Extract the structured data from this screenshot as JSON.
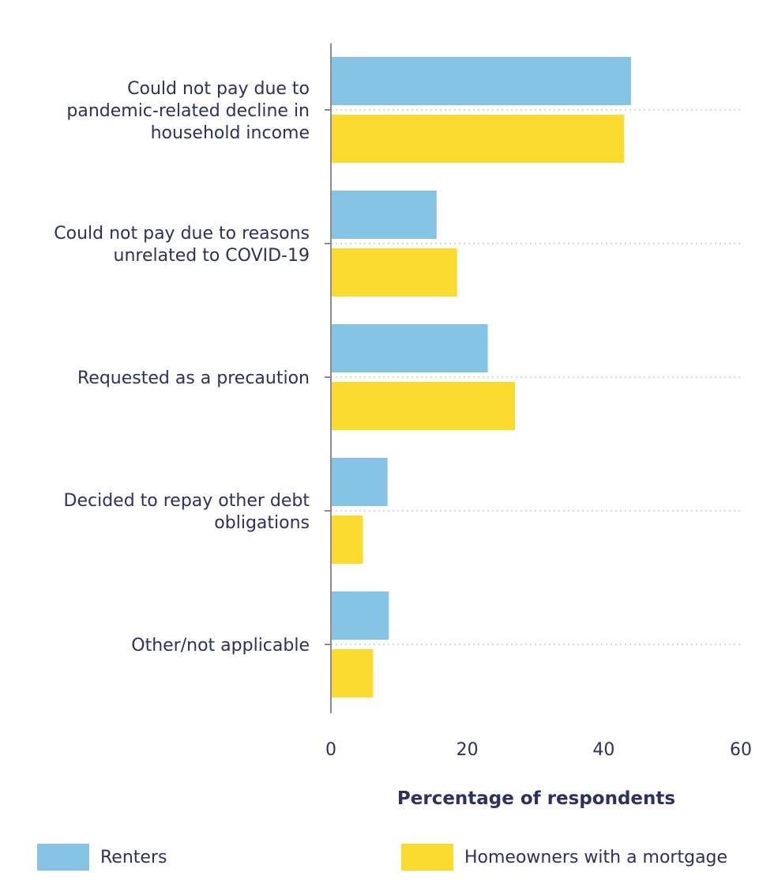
{
  "chart_data": {
    "type": "bar",
    "orientation": "horizontal",
    "categories": [
      [
        "Could not pay due to",
        "pandemic-related decline in",
        "household income"
      ],
      [
        "Could not pay due to reasons",
        "unrelated to COVID-19"
      ],
      [
        "Requested as a precaution"
      ],
      [
        "Decided to repay other debt",
        "obligations"
      ],
      [
        "Other/not applicable"
      ]
    ],
    "series": [
      {
        "name": "Renters",
        "color": "#85c4e4",
        "values": [
          44,
          15.5,
          23,
          8.3,
          8.5
        ]
      },
      {
        "name": "Homeowners with a mortgage",
        "color": "#fadb2e",
        "values": [
          43,
          18.5,
          27,
          4.7,
          6.2
        ]
      }
    ],
    "xlabel": "Percentage of respondents",
    "ylabel": "",
    "xlim": [
      0,
      60
    ],
    "xticks": [
      "0",
      "20",
      "40",
      "60"
    ],
    "grid": "dotted horizontal lines between category groups",
    "legend_position": "bottom"
  }
}
